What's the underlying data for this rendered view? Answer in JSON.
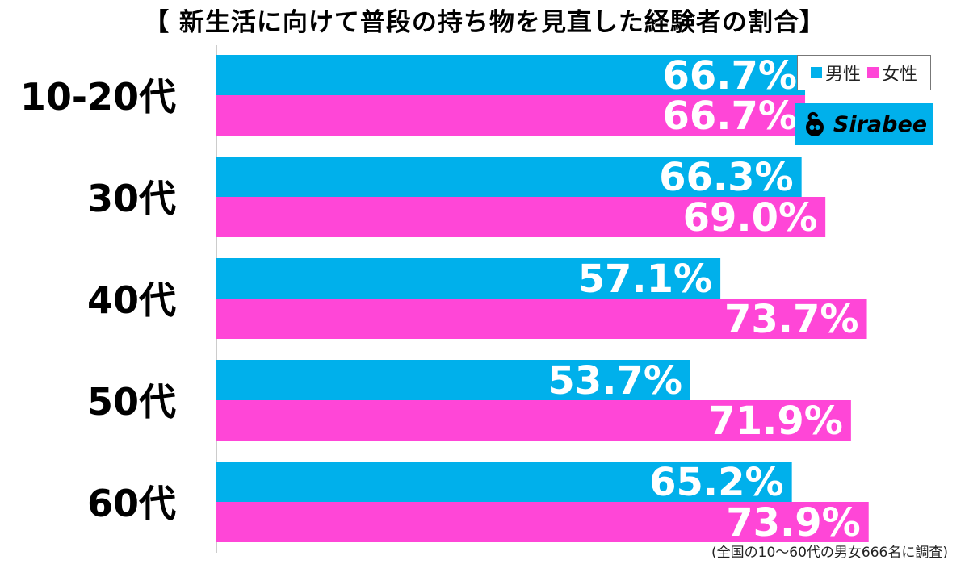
{
  "title": "【 新生活に向けて普段の持ち物を見直した経験者の割合】",
  "footnote": "(全国の10～60代の男女666名に調査)",
  "brand": {
    "name": "Sirabee",
    "icon": "sirabee-logo-icon"
  },
  "colors": {
    "male": "#00b0eb",
    "female": "#ff46d7",
    "axis": "#bbbbbb"
  },
  "chart_data": {
    "type": "bar",
    "orientation": "horizontal",
    "categories": [
      "10-20代",
      "30代",
      "40代",
      "50代",
      "60代"
    ],
    "series": [
      {
        "name": "男性",
        "values": [
          66.7,
          66.3,
          57.1,
          53.7,
          65.2
        ],
        "labels": [
          "66.7%",
          "66.3%",
          "57.1%",
          "53.7%",
          "65.2%"
        ]
      },
      {
        "name": "女性",
        "values": [
          66.7,
          69.0,
          73.7,
          71.9,
          73.9
        ],
        "labels": [
          "66.7%",
          "69.0%",
          "73.7%",
          "71.9%",
          "73.9%"
        ]
      }
    ],
    "xlim": [
      0,
      100
    ],
    "grid": false,
    "legend": "top-right"
  }
}
